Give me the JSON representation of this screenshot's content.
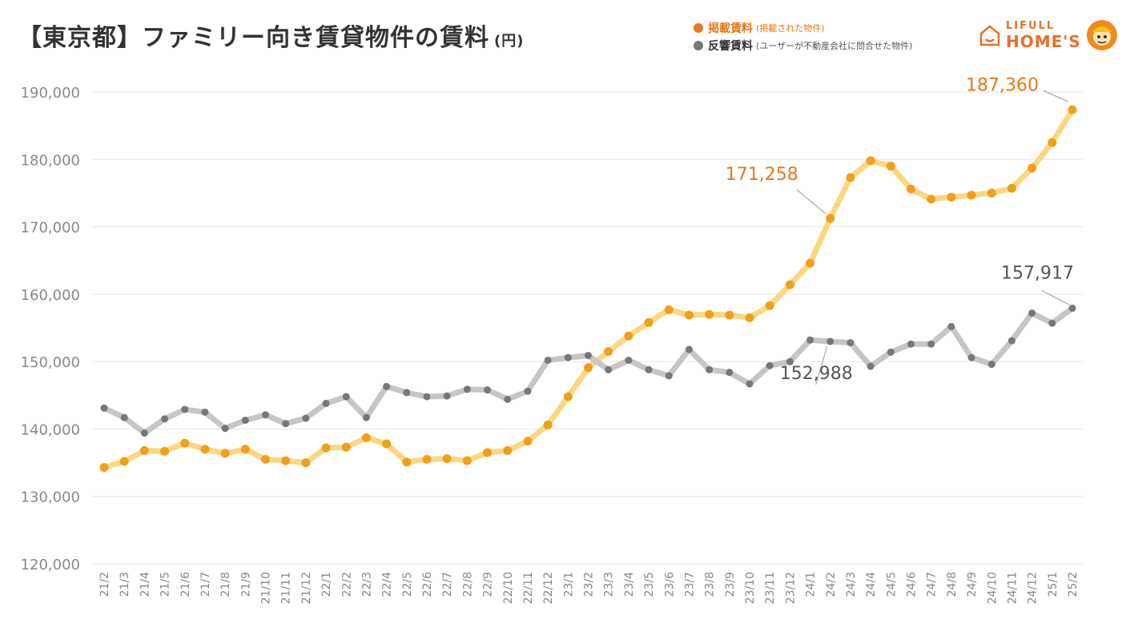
{
  "title": {
    "text": "【東京都】ファミリー向き賃貸物件の賃料",
    "unit": "(円)"
  },
  "legend": {
    "items": [
      {
        "name": "掲載賃料",
        "note": "(掲載された物件)",
        "color": "#f0a018"
      },
      {
        "name": "反響賃料",
        "note": "(ユーザーが不動産会社に問合せた物件)",
        "color": "#777777"
      }
    ]
  },
  "logo": {
    "line1": "LIFULL",
    "line2": "HOME'S"
  },
  "chart_data": {
    "type": "line",
    "title": "【東京都】ファミリー向き賃貸物件の賃料",
    "ylabel": "(円)",
    "ylim": [
      120000,
      190000
    ],
    "yticks": [
      120000,
      130000,
      140000,
      150000,
      160000,
      170000,
      180000,
      190000
    ],
    "ytick_labels": [
      "120,000",
      "130,000",
      "140,000",
      "150,000",
      "160,000",
      "170,000",
      "180,000",
      "190,000"
    ],
    "categories": [
      "21/2",
      "21/3",
      "21/4",
      "21/5",
      "21/6",
      "21/7",
      "21/8",
      "21/9",
      "21/10",
      "21/11",
      "21/12",
      "22/1",
      "22/2",
      "22/3",
      "22/4",
      "22/5",
      "22/6",
      "22/7",
      "22/8",
      "22/9",
      "22/10",
      "22/11",
      "22/12",
      "23/1",
      "23/2",
      "23/3",
      "23/4",
      "23/5",
      "23/6",
      "23/7",
      "23/8",
      "23/9",
      "23/10",
      "23/11",
      "23/12",
      "24/1",
      "24/2",
      "24/3",
      "24/4",
      "24/5",
      "24/6",
      "24/7",
      "24/8",
      "24/9",
      "24/10",
      "24/11",
      "24/12",
      "25/1",
      "25/2"
    ],
    "series": [
      {
        "name": "掲載賃料",
        "color": "#f0a018",
        "line_color": "#fbd780",
        "values": [
          134300,
          135200,
          136800,
          136700,
          137900,
          137000,
          136400,
          137000,
          135500,
          135300,
          135000,
          137200,
          137300,
          138700,
          137800,
          135100,
          135500,
          135600,
          135300,
          136500,
          136800,
          138200,
          140600,
          144800,
          149100,
          151500,
          153800,
          155800,
          157700,
          156900,
          157000,
          156900,
          156500,
          158300,
          161400,
          164600,
          171258,
          177300,
          179800,
          179000,
          175600,
          174100,
          174400,
          174700,
          175000,
          175700,
          178700,
          182500,
          187360
        ]
      },
      {
        "name": "反響賃料",
        "color": "#777777",
        "line_color": "#c6c6c6",
        "values": [
          143100,
          141700,
          139400,
          141500,
          142900,
          142500,
          140100,
          141300,
          142100,
          140800,
          141600,
          143800,
          144800,
          141700,
          146300,
          145400,
          144800,
          144900,
          145900,
          145800,
          144400,
          145600,
          150200,
          150600,
          150900,
          148800,
          150200,
          148800,
          147900,
          151800,
          148800,
          148400,
          146700,
          149400,
          150000,
          153200,
          152988,
          152800,
          149300,
          151400,
          152600,
          152600,
          155200,
          150600,
          149600,
          153100,
          157200,
          155700,
          157917
        ]
      }
    ],
    "annotations": [
      {
        "label": "187,360",
        "series": 0,
        "category": "25/2"
      },
      {
        "label": "171,258",
        "series": 0,
        "category": "24/2"
      },
      {
        "label": "157,917",
        "series": 1,
        "category": "25/2"
      },
      {
        "label": "152,988",
        "series": 1,
        "category": "24/2"
      }
    ]
  }
}
